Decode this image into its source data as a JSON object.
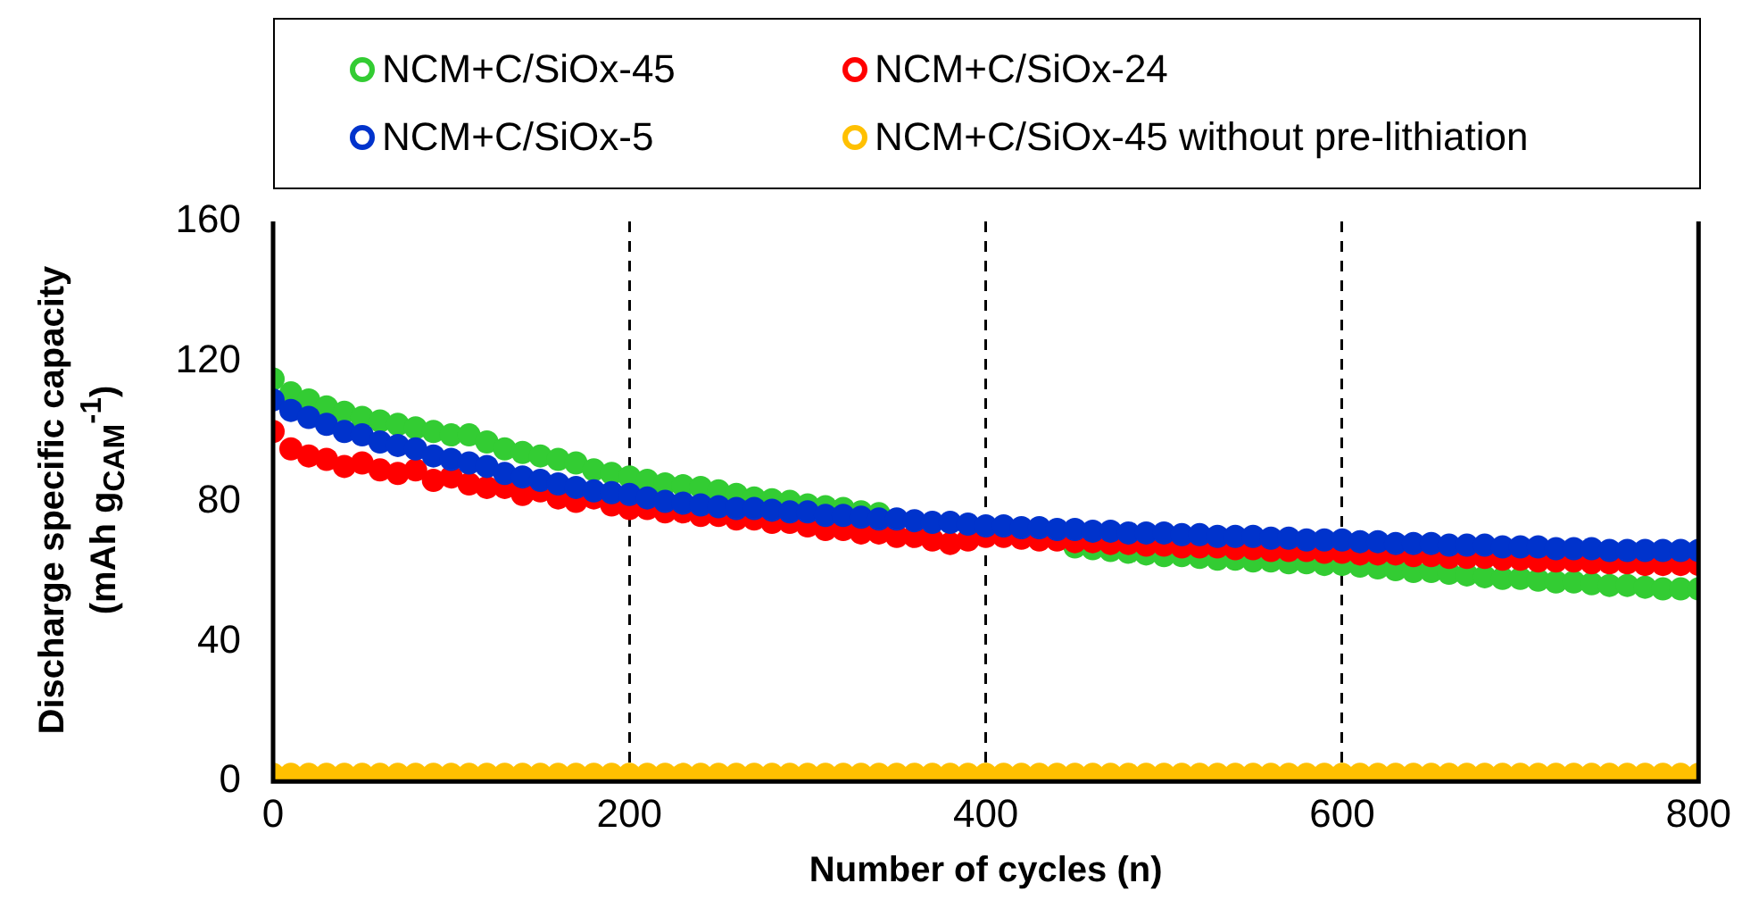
{
  "chart_data": {
    "type": "scatter",
    "xlabel": "Number of cycles (n)",
    "ylabel": "Discharge specific capacity\n(mAh g$_{CAM}$$^{-1}$)",
    "x": [
      0,
      10,
      20,
      30,
      40,
      50,
      60,
      70,
      80,
      90,
      100,
      110,
      120,
      130,
      140,
      150,
      160,
      170,
      180,
      190,
      200,
      210,
      220,
      230,
      240,
      250,
      260,
      270,
      280,
      290,
      300,
      310,
      320,
      330,
      340,
      350,
      360,
      370,
      380,
      390,
      400,
      410,
      420,
      430,
      440,
      450,
      460,
      470,
      480,
      490,
      500,
      510,
      520,
      530,
      540,
      550,
      560,
      570,
      580,
      590,
      600,
      610,
      620,
      630,
      640,
      650,
      660,
      670,
      680,
      690,
      700,
      710,
      720,
      730,
      740,
      750,
      760,
      770,
      780,
      790,
      800
    ],
    "series": [
      {
        "name": "NCM+C/SiOx-45 without pre-lithiation",
        "color": "#ffc000",
        "values": [
          2,
          2,
          2,
          2,
          2,
          2,
          2,
          2,
          2,
          2,
          2,
          2,
          2,
          2,
          2,
          2,
          2,
          2,
          2,
          2,
          2,
          2,
          2,
          2,
          2,
          2,
          2,
          2,
          2,
          2,
          2,
          2,
          2,
          2,
          2,
          2,
          2,
          2,
          2,
          2,
          2,
          2,
          2,
          2,
          2,
          2,
          2,
          2,
          2,
          2,
          2,
          2,
          2,
          2,
          2,
          2,
          2,
          2,
          2,
          2,
          2,
          2,
          2,
          2,
          2,
          2,
          2,
          2,
          2,
          2,
          2,
          2,
          2,
          2,
          2,
          2,
          2,
          2,
          2,
          2,
          2
        ]
      },
      {
        "name": "NCM+C/SiOx-45",
        "color": "#33cc33",
        "values": [
          115,
          111,
          109,
          107,
          105.5,
          104,
          103,
          102,
          101,
          100,
          99,
          99,
          97,
          95,
          94,
          93,
          92,
          91,
          89,
          88,
          87,
          86,
          85,
          84.5,
          84,
          83,
          82,
          81,
          80.5,
          80,
          79,
          78.5,
          78,
          77,
          76.5,
          null,
          null,
          null,
          null,
          null,
          null,
          null,
          null,
          null,
          null,
          67,
          66.5,
          66,
          65.5,
          65,
          64.5,
          64.5,
          64,
          63.5,
          63.5,
          63,
          63,
          62.5,
          62.5,
          62,
          62,
          61.5,
          61,
          60.5,
          60,
          60,
          59.5,
          59,
          58.5,
          58,
          58,
          57.5,
          57,
          57,
          56.5,
          56,
          56,
          55.5,
          55,
          55,
          55
        ]
      },
      {
        "name": "NCM+C/SiOx-24",
        "color": "#ff0000",
        "values": [
          100,
          95,
          93,
          92,
          90,
          91,
          89,
          88,
          89,
          86,
          87,
          85,
          84,
          84,
          82,
          83,
          81,
          80,
          81,
          79,
          78,
          78,
          77,
          77,
          76,
          76,
          75,
          75,
          74,
          74,
          73,
          72,
          72,
          71,
          71,
          70,
          70,
          69,
          68,
          69,
          70,
          70,
          69.5,
          69,
          69,
          68.5,
          68.5,
          68,
          68,
          67.5,
          67.5,
          67,
          67,
          67,
          66.5,
          66.5,
          66,
          66,
          66,
          65.5,
          65.5,
          65,
          65,
          65,
          64.5,
          64.5,
          64,
          64,
          64,
          63.5,
          63.5,
          63,
          63,
          63,
          62.5,
          62.5,
          62.5,
          62,
          62,
          62,
          62
        ]
      },
      {
        "name": "NCM+C/SiOx-5",
        "color": "#0033cc",
        "values": [
          109,
          106,
          104,
          102,
          100,
          99,
          97,
          96,
          95,
          93,
          92,
          91,
          90,
          88,
          87,
          86,
          85,
          84,
          83,
          82.5,
          82,
          81,
          80,
          79.5,
          79,
          78.5,
          78,
          78,
          77.5,
          77,
          77,
          76,
          76,
          75.5,
          75,
          75,
          74.5,
          74,
          74,
          73.5,
          73,
          73,
          72.5,
          72.5,
          72,
          72,
          71.5,
          71.5,
          71,
          71,
          71,
          70.5,
          70.5,
          70,
          70,
          70,
          69.5,
          69.5,
          69,
          69,
          69,
          68.5,
          68.5,
          68,
          68,
          68,
          67.5,
          67.5,
          67.5,
          67,
          67,
          67,
          66.5,
          66.5,
          66.5,
          66,
          66,
          66,
          66,
          66,
          66
        ]
      }
    ],
    "xlim": [
      0,
      800
    ],
    "xticks": [
      0,
      200,
      400,
      600,
      800
    ],
    "ylim": [
      0,
      160
    ],
    "yticks": [
      0,
      40,
      80,
      120,
      160
    ],
    "grid": "x",
    "line_style": "dashed",
    "marker": "circle",
    "legend": "top"
  }
}
